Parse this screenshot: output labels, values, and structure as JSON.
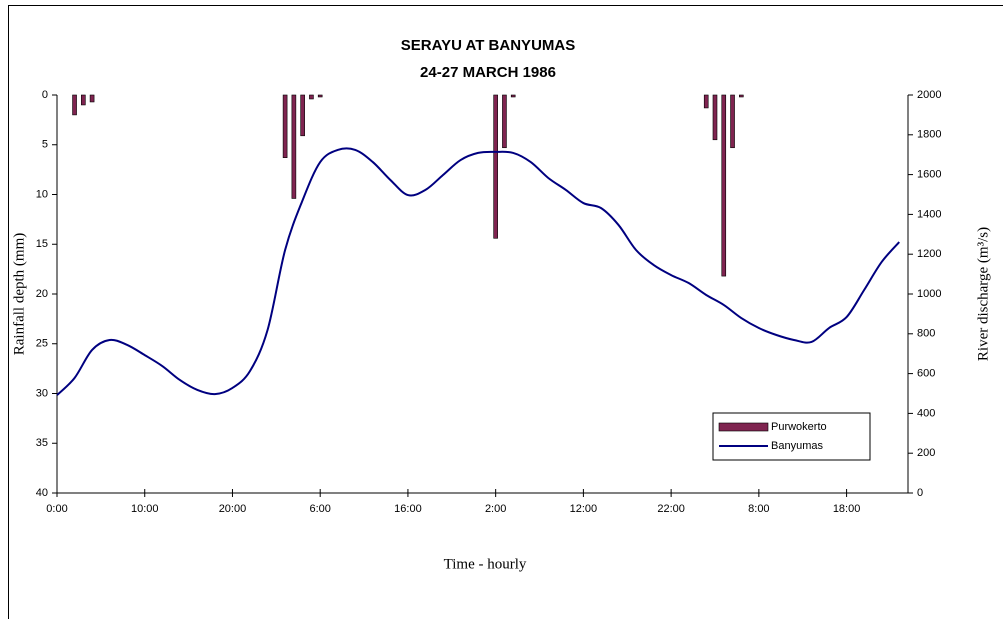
{
  "chart_data": {
    "type": "combo",
    "title": "SERAYU AT BANYUMAS",
    "subtitle": "24-27 MARCH 1986",
    "x_label": "Time - hourly",
    "y_label": "Rainfall depth (mm)",
    "y2_label": "River discharge (m³/s)",
    "xlim": [
      0,
      97
    ],
    "xticks": [
      {
        "value": 0,
        "label": "0:00"
      },
      {
        "value": 10,
        "label": "10:00"
      },
      {
        "value": 20,
        "label": "20:00"
      },
      {
        "value": 30,
        "label": "6:00"
      },
      {
        "value": 40,
        "label": "16:00"
      },
      {
        "value": 50,
        "label": "2:00"
      },
      {
        "value": 60,
        "label": "12:00"
      },
      {
        "value": 70,
        "label": "22:00"
      },
      {
        "value": 80,
        "label": "8:00"
      },
      {
        "value": 90,
        "label": "18:00"
      }
    ],
    "ylim": [
      40,
      0
    ],
    "yticks": [
      0,
      5,
      10,
      15,
      20,
      25,
      30,
      35,
      40
    ],
    "y2lim": [
      0,
      2000
    ],
    "y2ticks": [
      0,
      200,
      400,
      600,
      800,
      1000,
      1200,
      1400,
      1600,
      1800,
      2000
    ],
    "legend": "lower right",
    "series": [
      {
        "name": "Purwokerto",
        "type": "bar",
        "color": "#7f2450",
        "axis": "y",
        "x": [
          2,
          3,
          4,
          26,
          27,
          28,
          29,
          30,
          50,
          51,
          52,
          74,
          75,
          76,
          77,
          78
        ],
        "values": [
          2,
          1,
          0.7,
          6.3,
          10.4,
          4.1,
          0.4,
          0.2,
          14.4,
          5.3,
          0.2,
          1.3,
          4.5,
          18.2,
          5.3,
          0.2
        ]
      },
      {
        "name": "Banyumas",
        "type": "line",
        "color": "#000080",
        "axis": "y2",
        "x": [
          0,
          2,
          4,
          6,
          8,
          10,
          12,
          14,
          16,
          18,
          20,
          22,
          24,
          26,
          28,
          30,
          32,
          34,
          36,
          38,
          40,
          42,
          44,
          46,
          48,
          50,
          52,
          54,
          56,
          58,
          60,
          62,
          64,
          66,
          68,
          70,
          72,
          74,
          76,
          78,
          80,
          82,
          84,
          86,
          88,
          90,
          92,
          94,
          96
        ],
        "values": [
          492,
          578,
          719,
          769,
          744,
          693,
          638,
          568,
          518,
          497,
          528,
          613,
          819,
          1221,
          1472,
          1663,
          1724,
          1724,
          1663,
          1573,
          1497,
          1523,
          1598,
          1673,
          1709,
          1714,
          1709,
          1663,
          1583,
          1523,
          1457,
          1432,
          1347,
          1221,
          1146,
          1095,
          1055,
          995,
          945,
          879,
          829,
          794,
          769,
          759,
          829,
          884,
          1020,
          1161,
          1261
        ]
      }
    ]
  }
}
